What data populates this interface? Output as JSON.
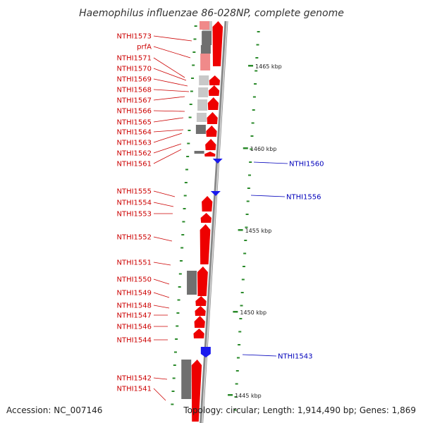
{
  "title": "Haemophilus influenzae 86-028NP, complete genome",
  "footer": {
    "accession": "Accession: NC_007146",
    "topology": "Topology: circular; Length: 1,914,490 bp; Genes: 1,869"
  },
  "colors": {
    "forward_gene": "#ee0000",
    "reverse_gene": "#1a1aee",
    "left_label": "#cc0000",
    "right_label": "#0000bb",
    "tick": "#2a8a2a",
    "backbone": "#888888",
    "dark_gene": "#707070",
    "light_gene": "#c8c8c8",
    "pink_gene": "#f08a8a"
  },
  "left_labels": [
    {
      "name": "NTHI1573"
    },
    {
      "name": "prfA"
    },
    {
      "name": "NTHI1571"
    },
    {
      "name": "NTHI1570"
    },
    {
      "name": "NTHI1569"
    },
    {
      "name": "NTHI1568"
    },
    {
      "name": "NTHI1567"
    },
    {
      "name": "NTHI1566"
    },
    {
      "name": "NTHI1565"
    },
    {
      "name": "NTHI1564"
    },
    {
      "name": "NTHI1563"
    },
    {
      "name": "NTHI1562"
    },
    {
      "name": "NTHI1561"
    },
    {
      "name": "NTHI1555"
    },
    {
      "name": "NTHI1554"
    },
    {
      "name": "NTHI1553"
    },
    {
      "name": "NTHI1552"
    },
    {
      "name": "NTHI1551"
    },
    {
      "name": "NTHI1550"
    },
    {
      "name": "NTHI1549"
    },
    {
      "name": "NTHI1548"
    },
    {
      "name": "NTHI1547"
    },
    {
      "name": "NTHI1546"
    },
    {
      "name": "NTHI1544"
    },
    {
      "name": "NTHI1542"
    },
    {
      "name": "NTHI1541"
    }
  ],
  "right_labels": [
    {
      "name": "NTHI1560"
    },
    {
      "name": "NTHI1556"
    },
    {
      "name": "NTHI1543"
    }
  ],
  "kbp_labels": [
    {
      "text": "1465 kbp"
    },
    {
      "text": "1460 kbp"
    },
    {
      "text": "1455 kbp"
    },
    {
      "text": "1450 kbp"
    },
    {
      "text": "1445 kbp"
    }
  ]
}
